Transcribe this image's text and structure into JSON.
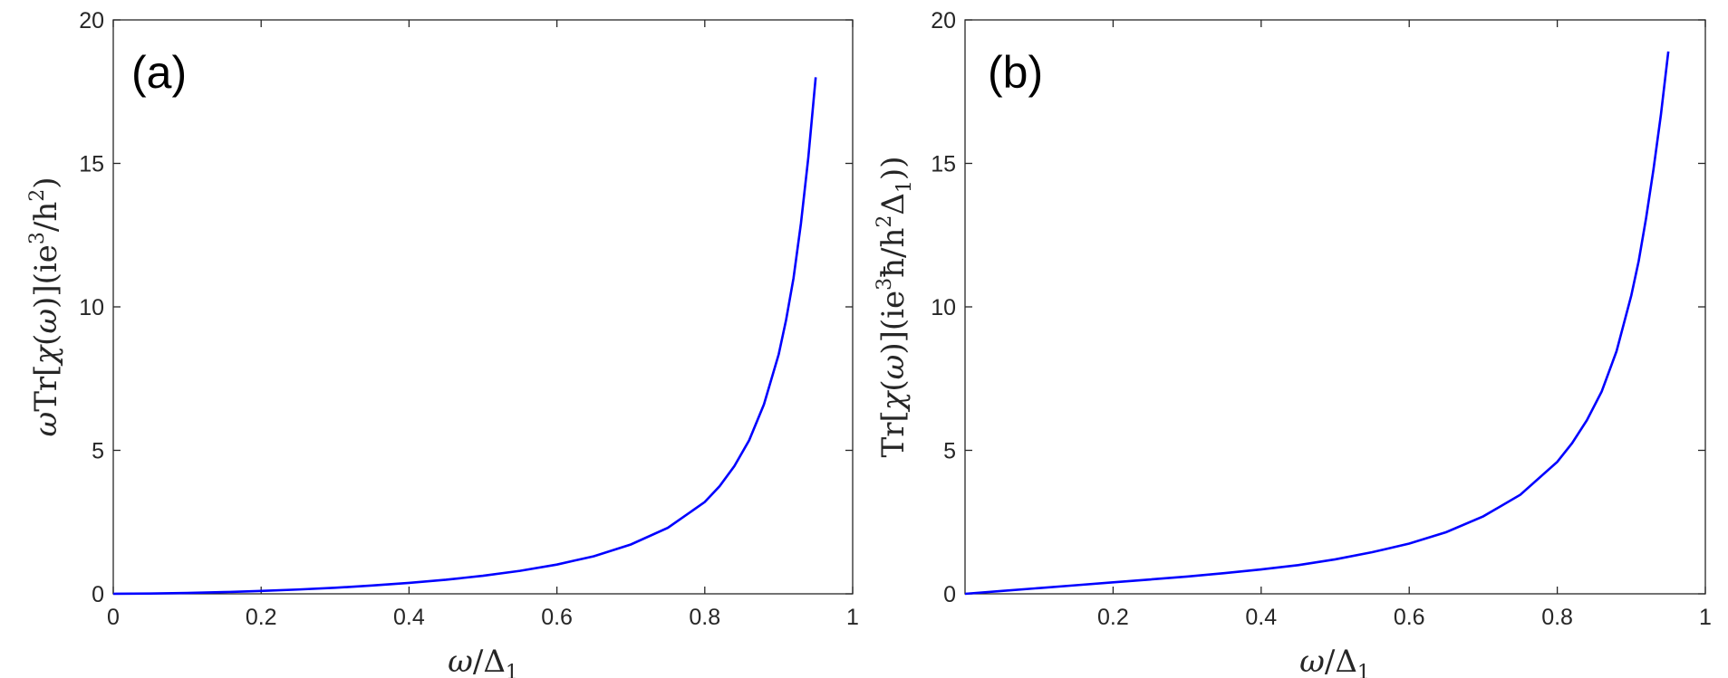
{
  "chart_data": [
    {
      "type": "line",
      "panel_label": "(a)",
      "xlabel": "ω/Δ₁",
      "ylabel": "ωTr[χ(ω)](ie³/h²)",
      "xlabel_parts": {
        "a": "ω",
        "b": "/Δ",
        "c": "1"
      },
      "ylabel_parts": {
        "a": "ω",
        "b": "Tr[",
        "c": "χ",
        "d": "(",
        "e": "ω",
        "f": ")](ie",
        "g": "3",
        "h": "/h",
        "i": "2",
        "j": ")"
      },
      "xlim": [
        0,
        1
      ],
      "ylim": [
        0,
        20
      ],
      "xticks": [
        0,
        0.2,
        0.4,
        0.6,
        0.8,
        1
      ],
      "xticklabels": [
        "0",
        "0.2",
        "0.4",
        "0.6",
        "0.8",
        "1"
      ],
      "yticks": [
        0,
        5,
        10,
        15,
        20
      ],
      "yticklabels": [
        "0",
        "5",
        "10",
        "15",
        "20"
      ],
      "grid": false,
      "series": [
        {
          "color": "#0000ff",
          "x": [
            0,
            0.05,
            0.1,
            0.15,
            0.2,
            0.25,
            0.3,
            0.35,
            0.4,
            0.45,
            0.5,
            0.55,
            0.6,
            0.65,
            0.7,
            0.75,
            0.8,
            0.82,
            0.84,
            0.86,
            0.88,
            0.9,
            0.91,
            0.92,
            0.93,
            0.94,
            0.95
          ],
          "y": [
            0,
            0.01,
            0.03,
            0.06,
            0.1,
            0.15,
            0.21,
            0.29,
            0.38,
            0.49,
            0.63,
            0.8,
            1.02,
            1.31,
            1.72,
            2.3,
            3.2,
            3.75,
            4.45,
            5.35,
            6.6,
            8.35,
            9.55,
            11.0,
            12.9,
            15.2,
            18.0
          ]
        }
      ]
    },
    {
      "type": "line",
      "panel_label": "(b)",
      "xlabel": "ω/Δ₁",
      "ylabel": "Tr[χ(ω)](ie³ħ/h²Δ₁))",
      "xlabel_parts": {
        "a": "ω",
        "b": "/Δ",
        "c": "1"
      },
      "ylabel_parts": {
        "a": "Tr[",
        "b": "χ",
        "c": "(",
        "d": "ω",
        "e": ")](ie",
        "f": "3",
        "g": "ħ/h",
        "h": "2",
        "i": "Δ",
        "j": "1",
        "k": "))"
      },
      "xlim": [
        0,
        1
      ],
      "ylim": [
        0,
        20
      ],
      "xticks": [
        0.2,
        0.4,
        0.6,
        0.8,
        1
      ],
      "xticklabels": [
        "0.2",
        "0.4",
        "0.6",
        "0.8",
        "1"
      ],
      "yticks": [
        0,
        5,
        10,
        15,
        20
      ],
      "yticklabels": [
        "0",
        "5",
        "10",
        "15",
        "20"
      ],
      "grid": false,
      "series": [
        {
          "color": "#0000ff",
          "x": [
            0,
            0.05,
            0.1,
            0.15,
            0.2,
            0.25,
            0.3,
            0.35,
            0.4,
            0.45,
            0.5,
            0.55,
            0.6,
            0.65,
            0.7,
            0.75,
            0.8,
            0.82,
            0.84,
            0.86,
            0.88,
            0.9,
            0.91,
            0.92,
            0.93,
            0.94,
            0.95
          ],
          "y": [
            0,
            0.1,
            0.2,
            0.3,
            0.4,
            0.5,
            0.6,
            0.72,
            0.85,
            1.0,
            1.2,
            1.45,
            1.75,
            2.15,
            2.7,
            3.45,
            4.6,
            5.25,
            6.05,
            7.05,
            8.45,
            10.4,
            11.6,
            13.1,
            14.8,
            16.7,
            18.9
          ]
        }
      ]
    }
  ]
}
